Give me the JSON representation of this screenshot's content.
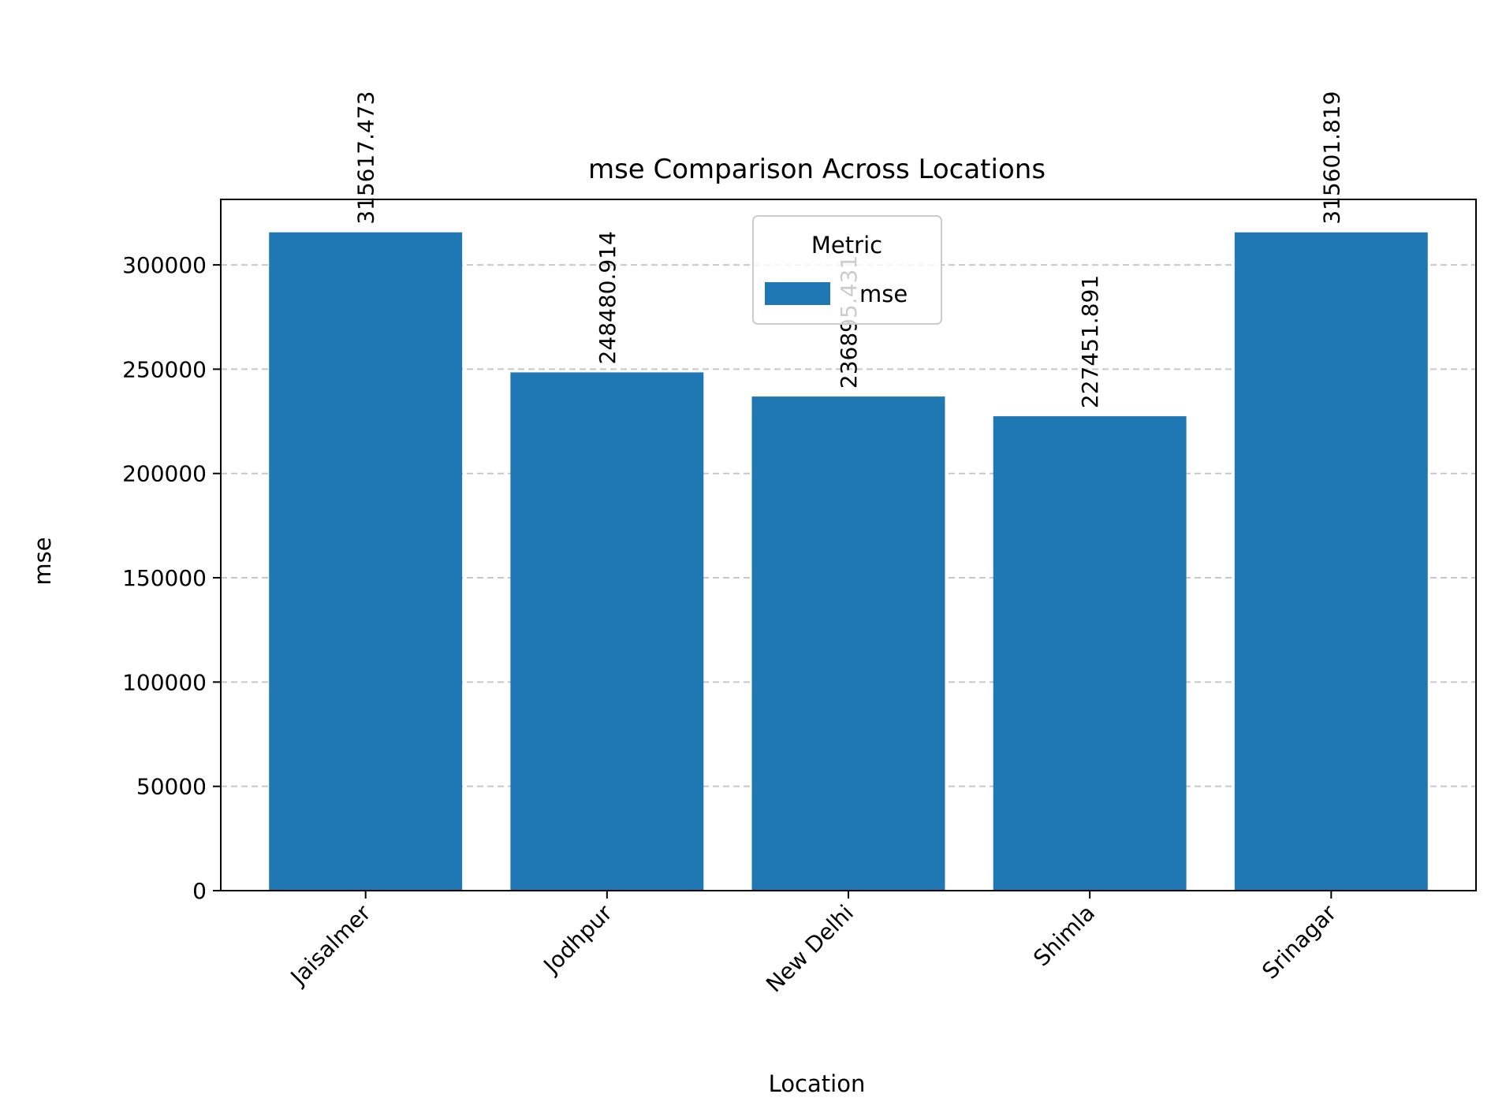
{
  "chart_data": {
    "type": "bar",
    "title": "mse Comparison Across Locations",
    "xlabel": "Location",
    "ylabel": "mse",
    "categories": [
      "Jaisalmer",
      "Jodhpur",
      "New Delhi",
      "Shimla",
      "Srinagar"
    ],
    "series": [
      {
        "name": "mse",
        "values": [
          315617.473,
          248480.914,
          236895.431,
          227451.891,
          315601.819
        ],
        "labels": [
          "315617.473",
          "248480.914",
          "236895.431",
          "227451.891",
          "315601.819"
        ]
      }
    ],
    "ylim": [
      0,
      331398.35
    ],
    "yticks": [
      0,
      50000,
      100000,
      150000,
      200000,
      250000,
      300000
    ],
    "ytick_labels": [
      "0",
      "50000",
      "100000",
      "150000",
      "200000",
      "250000",
      "300000"
    ],
    "grid": "y-dashed",
    "legend": {
      "title": "Metric",
      "placement": "top-center"
    },
    "colors": {
      "bar": "#1f77b4",
      "grid": "#c8c8c8",
      "axis": "#000000"
    }
  }
}
